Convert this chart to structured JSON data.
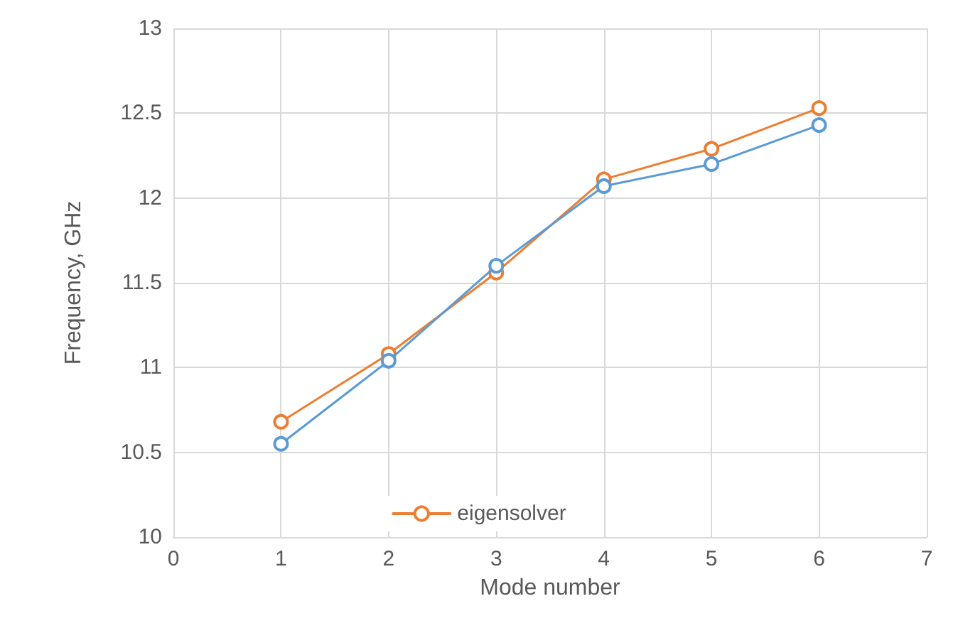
{
  "chart_data": {
    "type": "line",
    "xlabel": "Mode number",
    "ylabel": "Frequency, GHz",
    "x": [
      1,
      2,
      3,
      4,
      5,
      6
    ],
    "series": [
      {
        "color": "#5b9bd5",
        "values": [
          10.55,
          11.04,
          11.6,
          12.07,
          12.2,
          12.43
        ]
      },
      {
        "name": "eigensolver",
        "color": "#ed7d31",
        "values": [
          10.68,
          11.08,
          11.56,
          12.11,
          12.29,
          12.53
        ]
      }
    ],
    "xlim": [
      0,
      7
    ],
    "xticks": [
      0,
      1,
      2,
      3,
      4,
      5,
      6,
      7
    ],
    "ylim": [
      10,
      13
    ],
    "yticks": [
      10,
      10.5,
      11,
      11.5,
      12,
      12.5,
      13
    ],
    "grid": true,
    "legend": "bottom",
    "marker": "circle",
    "line_style": "solid"
  }
}
